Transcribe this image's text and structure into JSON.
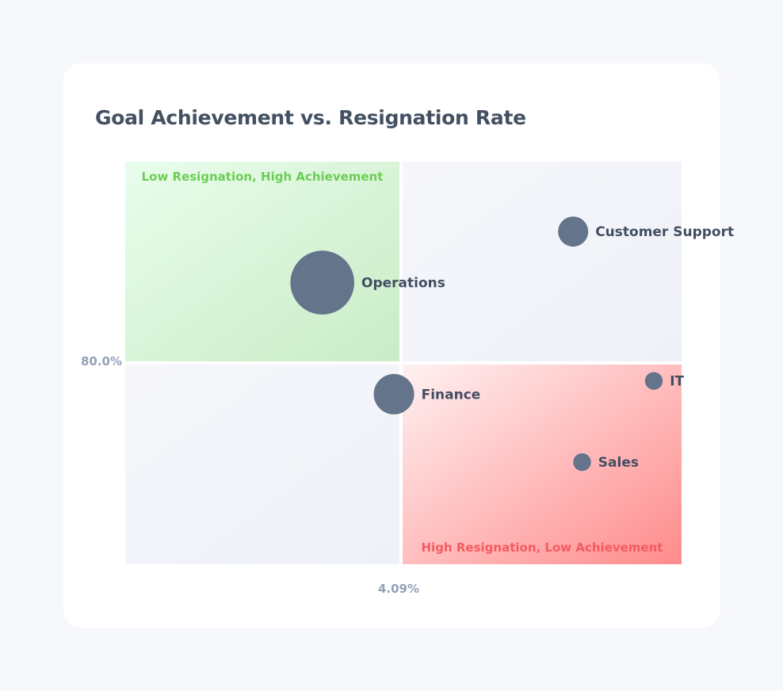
{
  "chart_data": {
    "type": "scatter",
    "title": "Goal Achievement vs. Resignation Rate",
    "xlabel": "",
    "ylabel": "",
    "x_divider_label": "4.09%",
    "y_divider_label": "80.0%",
    "x_divider": 4.09,
    "y_divider": 80.0,
    "xlim": [
      1.0,
      7.21
    ],
    "ylim": [
      69.3,
      90.6
    ],
    "quadrant_labels": {
      "top_left": "Low Resignation, High Achievement",
      "bottom_right": "High Resignation, Low Achievement"
    },
    "colors": {
      "point": "#64748b",
      "good_quadrant": "#86d97f",
      "bad_quadrant": "#ff8c8c",
      "neutral_quadrant": "#eef1f7",
      "good_text": "#6ccd54",
      "bad_text": "#f35b61"
    },
    "points": [
      {
        "name": "Customer Support",
        "x": 6.0,
        "y": 86.9,
        "size": 1.0
      },
      {
        "name": "Operations",
        "x": 3.2,
        "y": 84.2,
        "size": 4.5
      },
      {
        "name": "Finance",
        "x": 4.0,
        "y": 78.3,
        "size": 1.8
      },
      {
        "name": "IT",
        "x": 6.9,
        "y": 79.0,
        "size": 0.35
      },
      {
        "name": "Sales",
        "x": 6.1,
        "y": 74.7,
        "size": 0.35
      }
    ]
  }
}
